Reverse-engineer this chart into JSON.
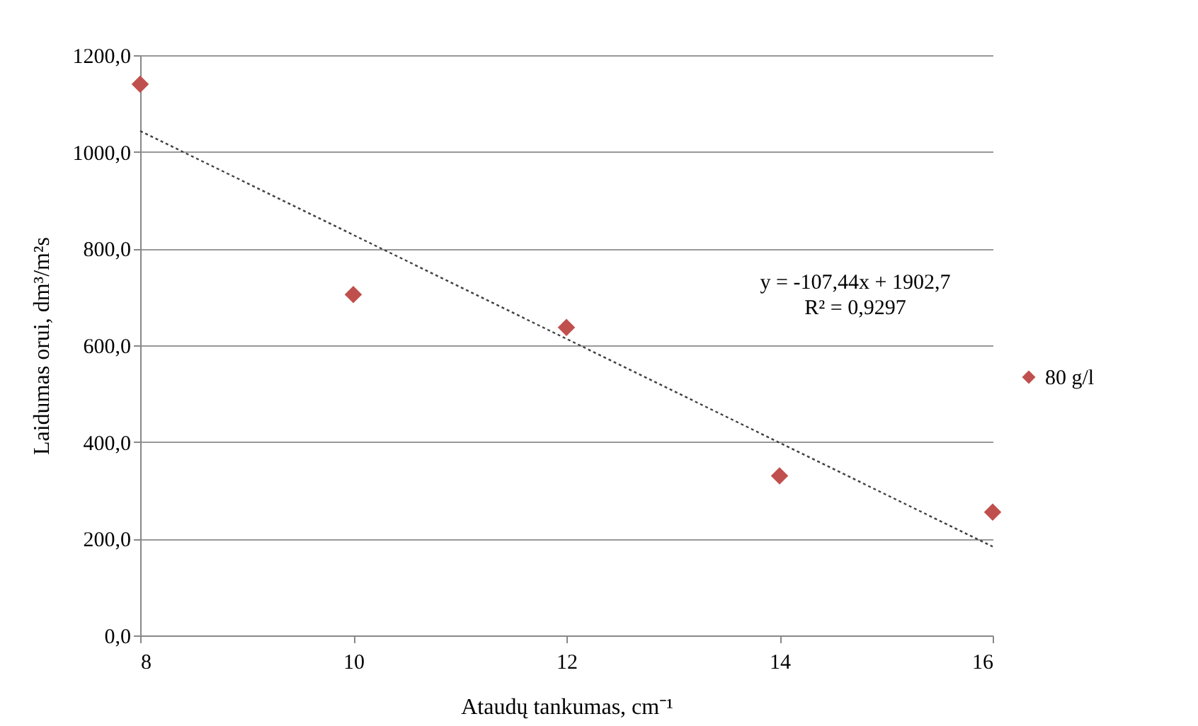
{
  "chart_data": {
    "type": "scatter",
    "xlabel": "Ataudų tankumas, cm⁻¹",
    "ylabel": "Laidumas orui, dm³/m²s",
    "x": [
      8,
      10,
      12,
      14,
      16
    ],
    "series": [
      {
        "name": "80 g/l",
        "type": "scatter",
        "color": "#c0504d",
        "marker": "diamond",
        "values": [
          1140,
          705,
          637,
          330,
          255
        ]
      },
      {
        "type": "line",
        "color": "#404040",
        "line_style": "dotted",
        "marker": "none",
        "x": [
          8,
          16
        ],
        "values": [
          1043.2,
          183.7
        ]
      }
    ],
    "annotations": [
      "y = -107,44x + 1902,7",
      "R² = 0,9297"
    ],
    "xlim": [
      8,
      16
    ],
    "xticks": [
      8,
      10,
      12,
      14,
      16
    ],
    "ylim": [
      0,
      1200
    ],
    "yticks": [
      {
        "value": 0,
        "label": "0,0"
      },
      {
        "value": 200,
        "label": "200,0"
      },
      {
        "value": 400,
        "label": "400,0"
      },
      {
        "value": 600,
        "label": "600,0"
      },
      {
        "value": 800,
        "label": "800,0"
      },
      {
        "value": 1000,
        "label": "1000,0"
      },
      {
        "value": 1200,
        "label": "1200,0"
      }
    ],
    "grid": "y",
    "legend": "right"
  }
}
